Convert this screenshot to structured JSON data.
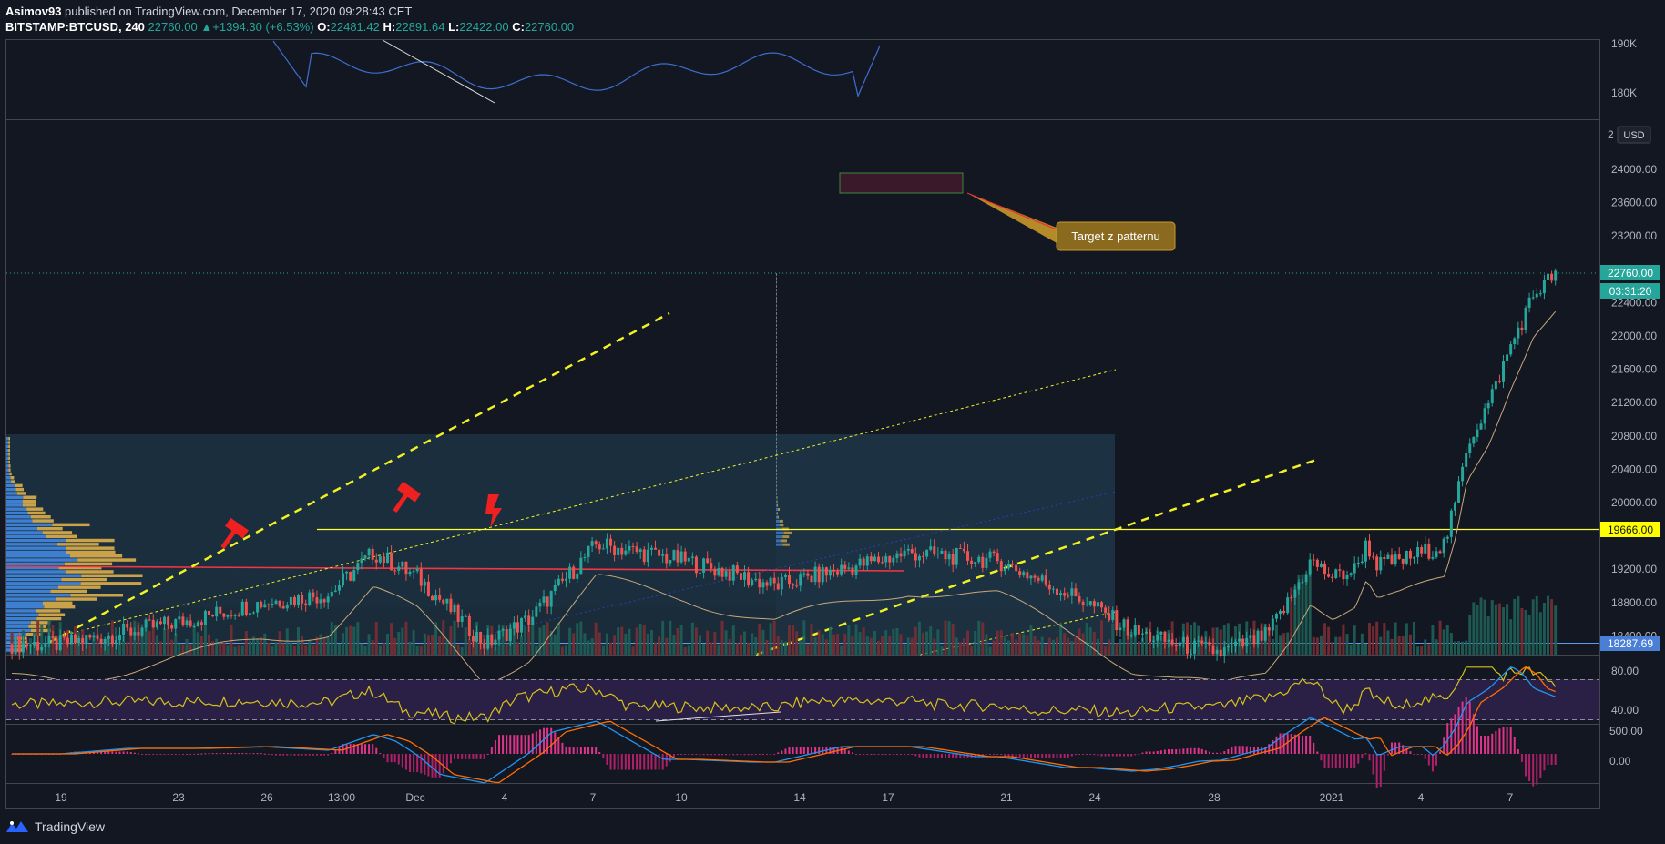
{
  "header": {
    "author": "Asimov93",
    "published_text": "published on TradingView.com, December 17, 2020 09:28:43 CET",
    "symbol": "BITSTAMP:BTCUSD, 240",
    "last": "22760.00",
    "change": "+1394.30 (+6.53%)",
    "o_label": "O:",
    "o": "22481.42",
    "h_label": "H:",
    "h": "22891.64",
    "l_label": "L:",
    "l": "22422.00",
    "c_label": "C:",
    "c": "22760.00",
    "up_arrow": "▲"
  },
  "chart_data": {
    "type": "line",
    "symbol": "BITSTAMP:BTCUSD",
    "timeframe": "240",
    "currency": "USD",
    "x_tick_labels": [
      "19",
      "23",
      "26",
      "13:00",
      "Dec",
      "4",
      "7",
      "10",
      "14",
      "17",
      "21",
      "24",
      "28",
      "2021",
      "4",
      "7"
    ],
    "price_axis_ticks": [
      "24000.00",
      "23600.00",
      "23200.00",
      "22400.00",
      "22000.00",
      "21600.00",
      "21200.00",
      "20800.00",
      "20400.00",
      "20000.00",
      "19200.00",
      "18800.00",
      "18400.00"
    ],
    "top_panel_ticks": [
      "190K",
      "180K"
    ],
    "rsi_ticks": [
      "80.00",
      "40.00"
    ],
    "macd_ticks": [
      "500.00",
      "0.00"
    ],
    "price_labels": {
      "last": "22760.00",
      "countdown": "03:31:20",
      "resistance": "19666.00",
      "support": "18287.69",
      "currency_badge": "USD",
      "partial_top": "2"
    },
    "price_series": {
      "name": "",
      "x": [
        0,
        3,
        6,
        9,
        12,
        14,
        16,
        19,
        21,
        24,
        28,
        32,
        35,
        38,
        42,
        46,
        48,
        50,
        52,
        54,
        55,
        56,
        57,
        58,
        58.5,
        59,
        60,
        61,
        62,
        62.5,
        63,
        64,
        65,
        66,
        67
      ],
      "y": [
        18300,
        18450,
        18600,
        18800,
        18900,
        19400,
        19100,
        18300,
        18600,
        19500,
        19300,
        19000,
        19200,
        19400,
        19300,
        18800,
        18450,
        18300,
        18200,
        18400,
        18800,
        19300,
        19100,
        19200,
        19500,
        19250,
        19300,
        19400,
        19500,
        20000,
        20700,
        21200,
        21900,
        22500,
        22760
      ]
    },
    "resistance_level": 19666.0,
    "support_level": 18287.69,
    "annotation": {
      "text": "Target z patternu",
      "target_zone": [
        23700,
        23950
      ]
    }
  },
  "footer": {
    "brand": "TradingView",
    "logo_icon": "tradingview-logo-icon"
  }
}
